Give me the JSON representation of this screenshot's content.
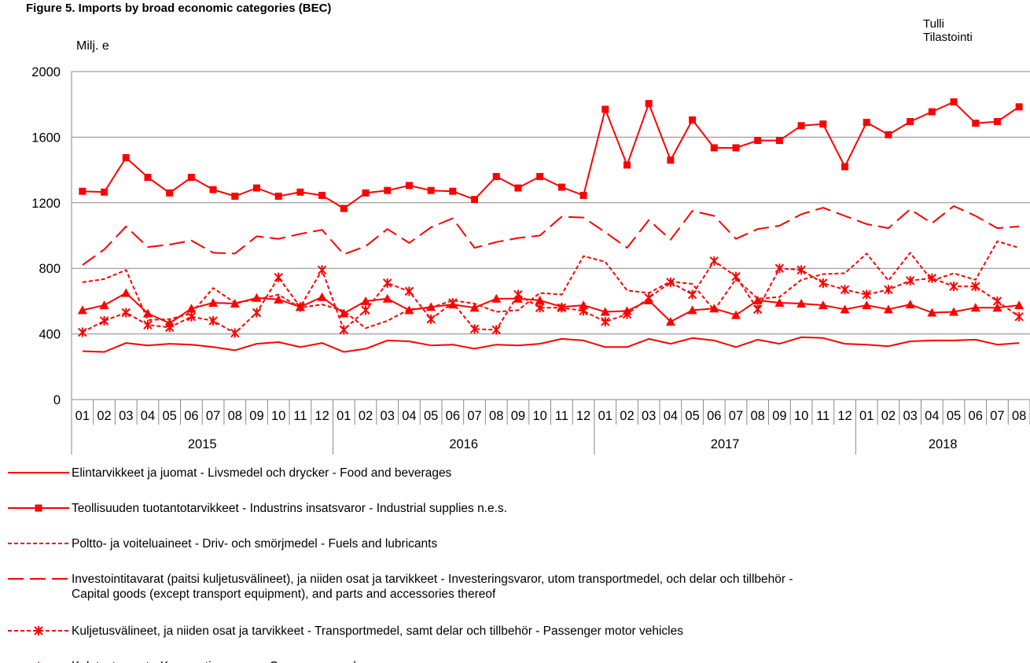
{
  "title": "Figure 5. Imports by broad economic categories (BEC)",
  "source": [
    "Tulli",
    "Tilastointi"
  ],
  "unit_label": "Milj. e",
  "chart_data": {
    "type": "line",
    "title": "Figure 5. Imports by broad economic categories (BEC)",
    "ylabel": "Milj. e",
    "ylim": [
      0,
      2000
    ],
    "yticks": [
      "0",
      "400",
      "800",
      "1200",
      "1600",
      "2000"
    ],
    "grid": true,
    "legend_position": "bottom",
    "years": [
      "2015",
      "2016",
      "2017",
      "2018"
    ],
    "x": [
      "01",
      "02",
      "03",
      "04",
      "05",
      "06",
      "07",
      "08",
      "09",
      "10",
      "11",
      "12",
      "01",
      "02",
      "03",
      "04",
      "05",
      "06",
      "07",
      "08",
      "09",
      "10",
      "11",
      "12",
      "01",
      "02",
      "03",
      "04",
      "05",
      "06",
      "07",
      "08",
      "09",
      "10",
      "11",
      "12",
      "01",
      "02",
      "03",
      "04",
      "05",
      "06",
      "07",
      "08"
    ],
    "series": [
      {
        "name": "Elintarvikkeet ja juomat - Livsmedel och drycker - Food and beverages",
        "line": "solid",
        "marker": "none",
        "color": "#ff0000",
        "values": [
          295,
          290,
          345,
          330,
          340,
          335,
          320,
          300,
          340,
          350,
          320,
          345,
          290,
          310,
          360,
          355,
          330,
          335,
          310,
          335,
          330,
          340,
          370,
          360,
          320,
          320,
          370,
          340,
          375,
          360,
          320,
          365,
          340,
          380,
          375,
          340,
          335,
          325,
          355,
          360,
          360,
          365,
          335,
          345
        ]
      },
      {
        "name": "Teollisuuden tuotantotarvikkeet - Industrins insatsvaror - Industrial supplies n.e.s.",
        "line": "solid",
        "marker": "square",
        "color": "#ff0000",
        "values": [
          1270,
          1265,
          1475,
          1355,
          1260,
          1355,
          1280,
          1240,
          1290,
          1240,
          1265,
          1245,
          1165,
          1260,
          1275,
          1305,
          1275,
          1270,
          1220,
          1360,
          1290,
          1360,
          1295,
          1245,
          1770,
          1430,
          1805,
          1460,
          1705,
          1535,
          1535,
          1580,
          1580,
          1670,
          1680,
          1420,
          1690,
          1615,
          1695,
          1755,
          1815,
          1685,
          1695,
          1785
        ]
      },
      {
        "name": "Poltto- ja voiteluaineet - Driv- och smörjmedel - Fuels and lubricants",
        "line": "dotted",
        "marker": "none",
        "color": "#ff0000",
        "values": [
          715,
          735,
          790,
          485,
          490,
          525,
          680,
          590,
          610,
          640,
          560,
          580,
          540,
          435,
          480,
          550,
          560,
          605,
          585,
          535,
          545,
          650,
          640,
          875,
          840,
          665,
          650,
          720,
          705,
          545,
          735,
          615,
          625,
          730,
          765,
          770,
          890,
          725,
          895,
          725,
          770,
          730,
          965,
          925
        ]
      },
      {
        "name": "Investointitavarat (paitsi kuljetusvälineet), ja niiden osat ja tarvikkeet - Investeringsvaror, utom transportmedel, och delar och tillbehör - Capital goods (except transport equipment), and parts and accessories thereof",
        "line": "dashed",
        "marker": "none",
        "color": "#ff0000",
        "values": [
          820,
          915,
          1055,
          930,
          945,
          970,
          895,
          890,
          995,
          980,
          1010,
          1035,
          885,
          935,
          1040,
          955,
          1050,
          1105,
          925,
          960,
          985,
          1000,
          1115,
          1110,
          1020,
          925,
          1095,
          975,
          1150,
          1120,
          980,
          1040,
          1060,
          1130,
          1170,
          1120,
          1070,
          1045,
          1160,
          1075,
          1180,
          1120,
          1045,
          1055
        ]
      },
      {
        "name": "Kuljetusvälineet, ja niiden osat ja tarvikkeet - Transportmedel, samt delar och tillbehör - Passenger motor vehicles",
        "line": "dotted",
        "marker": "asterisk",
        "color": "#ff0000",
        "values": [
          410,
          480,
          530,
          455,
          440,
          505,
          480,
          405,
          530,
          745,
          565,
          790,
          425,
          545,
          710,
          660,
          490,
          590,
          430,
          425,
          640,
          560,
          560,
          540,
          475,
          520,
          620,
          715,
          640,
          845,
          750,
          550,
          800,
          790,
          710,
          670,
          640,
          670,
          725,
          740,
          690,
          690,
          600,
          505
        ]
      },
      {
        "name": "Kulutustavarat - Konsumtionsvaror - Consumer goods n.e.s.",
        "line": "solid",
        "marker": "triangle",
        "color": "#ff0000",
        "values": [
          545,
          575,
          650,
          525,
          465,
          555,
          590,
          585,
          620,
          610,
          565,
          625,
          525,
          600,
          615,
          545,
          565,
          580,
          560,
          615,
          615,
          605,
          565,
          575,
          535,
          540,
          605,
          475,
          545,
          555,
          515,
          605,
          590,
          585,
          575,
          550,
          575,
          550,
          580,
          530,
          535,
          560,
          560,
          575
        ]
      }
    ]
  }
}
